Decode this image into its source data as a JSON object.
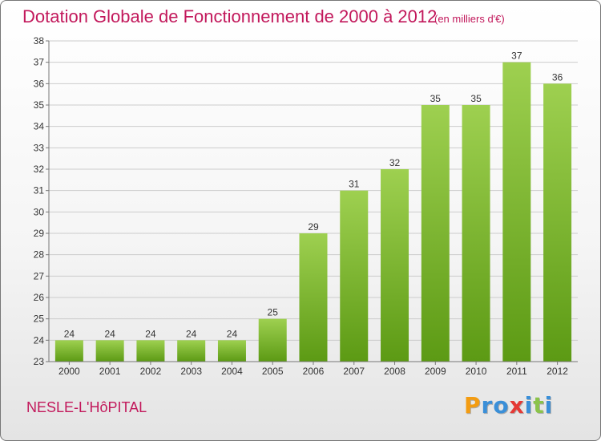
{
  "header": {
    "title": "Dotation Globale de Fonctionnement de 2000 à 2012",
    "unit": "(en milliers d'€)"
  },
  "footer": {
    "commune": "NESLE-L'HôPITAL",
    "logo_letters": [
      "P",
      "r",
      "o",
      "x",
      "i",
      "t",
      "i"
    ],
    "logo_colors": [
      "#f39c12",
      "#3a8fd8",
      "#3a8fd8",
      "#e53935",
      "#3a8fd8",
      "#8bc34a",
      "#3a8fd8"
    ]
  },
  "colors": {
    "title": "#c2185b",
    "bar_top": "#9ed050",
    "bar_bottom": "#5c9a14",
    "grid": "#cccccc",
    "axis": "#777777"
  },
  "chart_data": {
    "type": "bar",
    "categories": [
      "2000",
      "2001",
      "2002",
      "2003",
      "2004",
      "2005",
      "2006",
      "2007",
      "2008",
      "2009",
      "2010",
      "2011",
      "2012"
    ],
    "values": [
      24,
      24,
      24,
      24,
      24,
      25,
      29,
      31,
      32,
      35,
      35,
      37,
      36
    ],
    "ylim": [
      23,
      38
    ],
    "yticks": [
      23,
      24,
      25,
      26,
      27,
      28,
      29,
      30,
      31,
      32,
      33,
      34,
      35,
      36,
      37,
      38
    ],
    "grid": true,
    "data_labels": true
  }
}
